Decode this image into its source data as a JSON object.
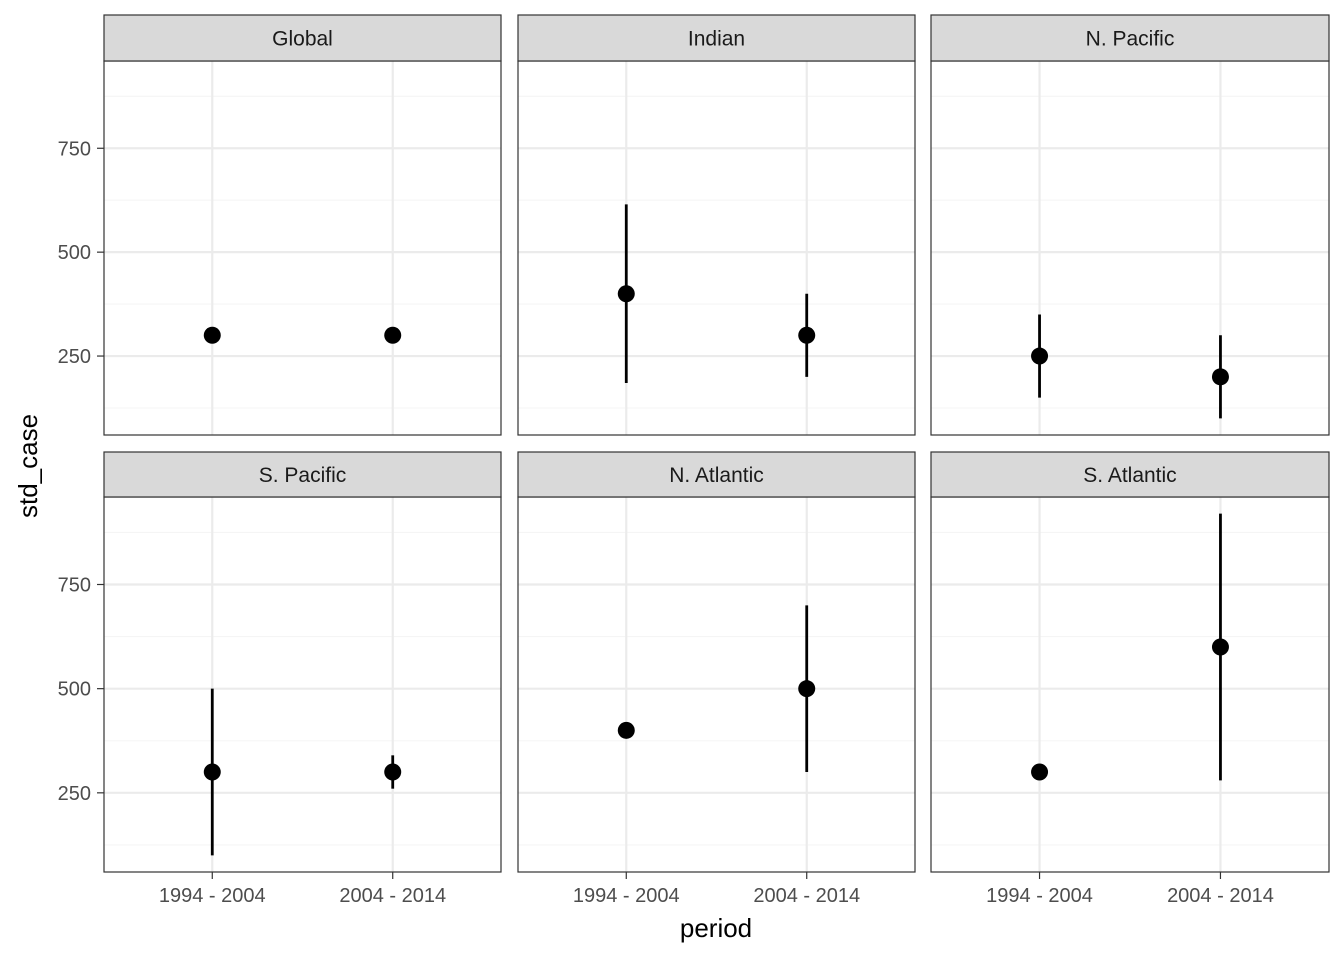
{
  "chart_data": {
    "type": "scatter",
    "xlabel": "period",
    "ylabel": "std_case",
    "categories": [
      "1994 - 2004",
      "2004 - 2014"
    ],
    "ylim": [
      60,
      960
    ],
    "yticks": [
      250,
      500,
      750
    ],
    "grid": true,
    "colors": {
      "point": "#000000",
      "strip_fill": "#d9d9d9",
      "grid_major": "#ebebeb",
      "grid_minor": "#f5f5f5",
      "panel_border": "#333333"
    },
    "panels": [
      {
        "title": "Global",
        "points": [
          {
            "x": "1994 - 2004",
            "y": 300,
            "ymin": null,
            "ymax": null
          },
          {
            "x": "2004 - 2014",
            "y": 300,
            "ymin": null,
            "ymax": null
          }
        ]
      },
      {
        "title": "Indian",
        "points": [
          {
            "x": "1994 - 2004",
            "y": 400,
            "ymin": 185,
            "ymax": 615
          },
          {
            "x": "2004 - 2014",
            "y": 300,
            "ymin": 200,
            "ymax": 400
          }
        ]
      },
      {
        "title": "N. Pacific",
        "points": [
          {
            "x": "1994 - 2004",
            "y": 250,
            "ymin": 150,
            "ymax": 350
          },
          {
            "x": "2004 - 2014",
            "y": 200,
            "ymin": 100,
            "ymax": 300
          }
        ]
      },
      {
        "title": "S. Pacific",
        "points": [
          {
            "x": "1994 - 2004",
            "y": 300,
            "ymin": 100,
            "ymax": 500
          },
          {
            "x": "2004 - 2014",
            "y": 300,
            "ymin": 260,
            "ymax": 340
          }
        ]
      },
      {
        "title": "N. Atlantic",
        "points": [
          {
            "x": "1994 - 2004",
            "y": 400,
            "ymin": null,
            "ymax": null
          },
          {
            "x": "2004 - 2014",
            "y": 500,
            "ymin": 300,
            "ymax": 700
          }
        ]
      },
      {
        "title": "S. Atlantic",
        "points": [
          {
            "x": "1994 - 2004",
            "y": 300,
            "ymin": null,
            "ymax": null
          },
          {
            "x": "2004 - 2014",
            "y": 600,
            "ymin": 280,
            "ymax": 920
          }
        ]
      }
    ]
  }
}
